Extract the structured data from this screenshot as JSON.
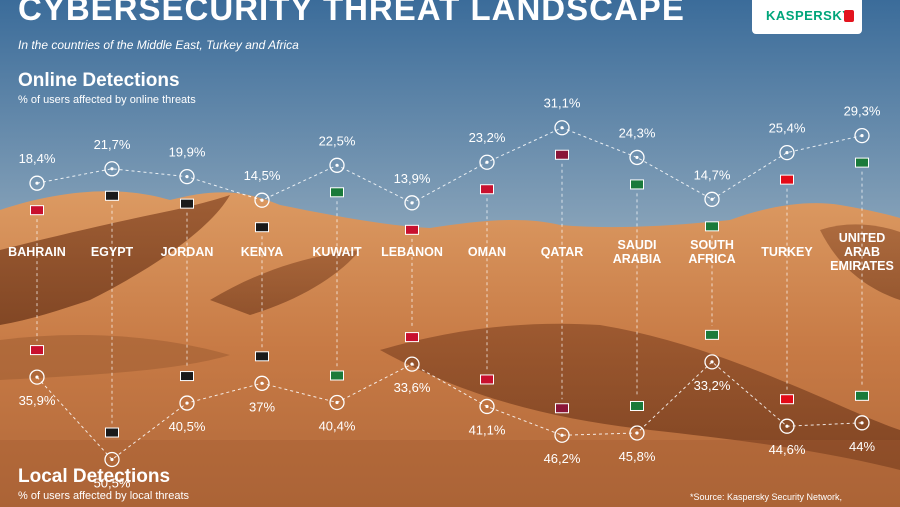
{
  "header": {
    "title": "CYBERSECURITY THREAT LANDSCAPE",
    "subtitle": "In the countries of the Middle East, Turkey and Africa",
    "logo_text": "KASPERSKY"
  },
  "sections": {
    "online_title": "Online Detections",
    "online_sub": "% of users affected by online threats",
    "local_title": "Local Detections",
    "local_sub": "% of users affected by local threats"
  },
  "footer": {
    "source": "*Source: Kaspersky Security Network,"
  },
  "colors": {
    "sky_top": "#3d6f9d",
    "sky_bottom": "#cdd7dd",
    "sand_light": "#d9925a",
    "sand_dark": "#7a3b1c",
    "text": "#ffffff"
  },
  "chart_data": {
    "type": "line",
    "categories": [
      [
        "BAHRAIN"
      ],
      [
        "EGYPT"
      ],
      [
        "JORDAN"
      ],
      [
        "KENYA"
      ],
      [
        "KUWAIT"
      ],
      [
        "LEBANON"
      ],
      [
        "OMAN"
      ],
      [
        "QATAR"
      ],
      [
        "SAUDI",
        "ARABIA"
      ],
      [
        "SOUTH",
        "AFRICA"
      ],
      [
        "TURKEY"
      ],
      [
        "UNITED",
        "ARAB",
        "EMIRATES"
      ]
    ],
    "series": [
      {
        "name": "Online Detections",
        "values": [
          18.4,
          21.7,
          19.9,
          14.5,
          22.5,
          13.9,
          23.2,
          31.1,
          24.3,
          14.7,
          25.4,
          29.3
        ],
        "labels": [
          "18,4%",
          "21,7%",
          "19,9%",
          "14,5%",
          "22,5%",
          "13,9%",
          "23,2%",
          "31,1%",
          "24,3%",
          "14,7%",
          "25,4%",
          "29,3%"
        ]
      },
      {
        "name": "Local Detections",
        "values": [
          35.9,
          50.5,
          40.5,
          37,
          40.4,
          33.6,
          41.1,
          46.2,
          45.8,
          33.2,
          44.6,
          44
        ],
        "labels": [
          "35,9%",
          "50,5%",
          "40,5%",
          "37%",
          "40,4%",
          "33,6%",
          "41,1%",
          "46,2%",
          "45,8%",
          "33,2%",
          "44,6%",
          "44%"
        ]
      }
    ]
  }
}
